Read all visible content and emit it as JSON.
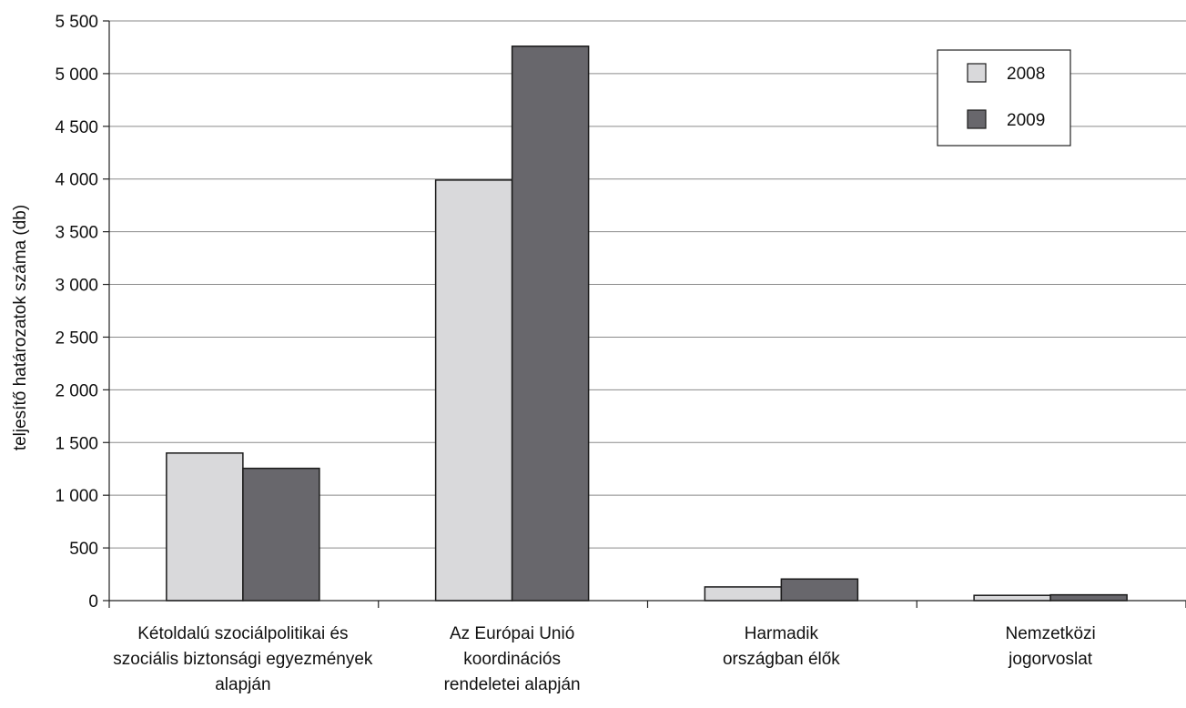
{
  "chart_data": {
    "type": "bar",
    "title": "",
    "xlabel": "",
    "ylabel": "teljesítő határozatok száma (db)",
    "ylim": [
      0,
      5500
    ],
    "ytick_step": 500,
    "ytick_labels": [
      "0",
      "500",
      "1 000",
      "1 500",
      "2 000",
      "2 500",
      "3 000",
      "3 500",
      "4 000",
      "4 500",
      "5 000",
      "5 500"
    ],
    "grid": true,
    "legend_position": "top-right",
    "categories": [
      [
        "Kétoldalú szociálpolitikai és",
        "szociális biztonsági egyezmények",
        "alapján"
      ],
      [
        "Az Európai Unió",
        "koordinációs",
        "rendeletei alapján"
      ],
      [
        "Harmadik",
        "országban élők"
      ],
      [
        "Nemzetközi",
        "jogorvoslat"
      ]
    ],
    "series": [
      {
        "name": "2008",
        "color": "#d9d9db",
        "values": [
          1400,
          3990,
          130,
          50
        ]
      },
      {
        "name": "2009",
        "color": "#68676c",
        "values": [
          1255,
          5260,
          205,
          55
        ]
      }
    ]
  }
}
